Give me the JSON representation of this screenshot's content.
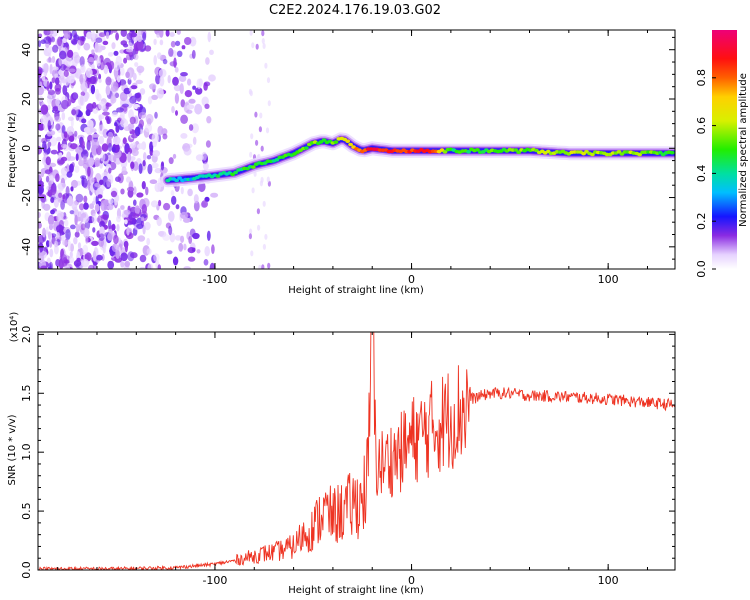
{
  "title": "C2E2.2024.176.19.03.G02",
  "chart_data": [
    {
      "type": "heatmap",
      "xlabel": "Height of straight line (km)",
      "ylabel": "Frequency (Hz)",
      "xlim": [
        -190,
        134
      ],
      "ylim": [
        -49,
        48
      ],
      "xticks": [
        -100,
        0,
        100
      ],
      "xtick_labels": [
        "-100",
        "0",
        "100"
      ],
      "yticks": [
        -40,
        -20,
        0,
        20,
        40
      ],
      "ytick_labels": [
        "-40",
        "-20",
        "0",
        "20",
        "40"
      ],
      "colorbar": {
        "label": "Normalized spectral amplitude",
        "range": [
          0,
          1
        ],
        "ticks": [
          0,
          0.2,
          0.4,
          0.6,
          0.8
        ],
        "tick_labels": [
          "0.0",
          "0.2",
          "0.4",
          "0.6",
          "0.8"
        ],
        "colormap": "rainbow: white-lavender → violet → blue → cyan → green → yellow → red → magenta"
      },
      "ridge": {
        "x": [
          -124,
          -110,
          -100,
          -90,
          -80,
          -70,
          -60,
          -50,
          -45,
          -40,
          -35,
          -30,
          -25,
          -20,
          -10,
          0,
          10,
          20,
          40,
          60,
          80,
          100,
          120,
          134
        ],
        "y": [
          -13,
          -12,
          -11,
          -10,
          -7,
          -5,
          -2,
          2,
          3,
          2,
          4,
          1,
          -1,
          0,
          -1,
          -1,
          -1,
          -1,
          -1,
          -1,
          -2,
          -2,
          -2,
          -2
        ],
        "amplitude": [
          0.35,
          0.35,
          0.4,
          0.45,
          0.5,
          0.45,
          0.5,
          0.55,
          0.5,
          0.55,
          0.6,
          0.7,
          0.8,
          0.92,
          0.85,
          0.85,
          0.9,
          0.45,
          0.5,
          0.55,
          0.6,
          0.6,
          0.55,
          0.5
        ]
      },
      "noise_region_x": [
        -190,
        -100
      ]
    },
    {
      "type": "line",
      "xlabel": "Height of straight line (km)",
      "ylabel": "SNR (10 * v/v)",
      "y_multiplier": "(x10⁴)",
      "xlim": [
        -190,
        134
      ],
      "ylim": [
        0,
        2.02
      ],
      "xticks": [
        -100,
        0,
        100
      ],
      "xtick_labels": [
        "-100",
        "0",
        "100"
      ],
      "yticks": [
        0,
        0.5,
        1.0,
        1.5,
        2.0
      ],
      "ytick_labels": [
        "0.0",
        "0.5",
        "1.0",
        "1.5",
        "2.0"
      ],
      "color": "#ee3322",
      "series": [
        {
          "x": [
            -190,
            -150,
            -120,
            -100,
            -90,
            -85,
            -80,
            -75,
            -70,
            -60,
            -55,
            -50,
            -45,
            -40,
            -35,
            -30,
            -25,
            -22,
            -20,
            -18,
            -15,
            -10,
            -5,
            0,
            5,
            10,
            15,
            20,
            25,
            30,
            40,
            50,
            60,
            80,
            100,
            120,
            134
          ],
          "y": [
            0.01,
            0.01,
            0.02,
            0.05,
            0.08,
            0.1,
            0.12,
            0.14,
            0.15,
            0.2,
            0.3,
            0.35,
            0.5,
            0.45,
            0.5,
            0.55,
            0.6,
            0.8,
            2.0,
            0.9,
            0.9,
            0.95,
            1.0,
            1.1,
            1.15,
            1.2,
            1.25,
            1.3,
            1.35,
            1.45,
            1.5,
            1.5,
            1.48,
            1.47,
            1.45,
            1.42,
            1.4
          ]
        }
      ]
    }
  ]
}
